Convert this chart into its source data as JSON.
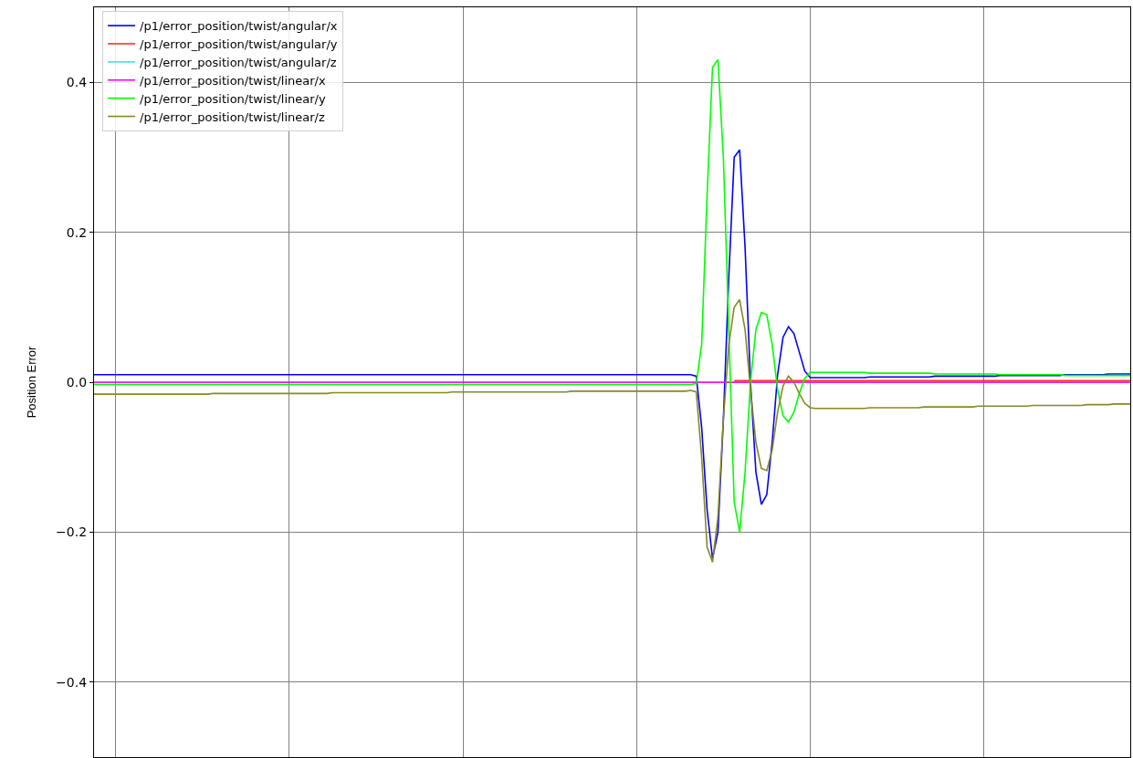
{
  "chart_data": {
    "type": "line",
    "ylabel": "Position Error",
    "categories": [
      null,
      null,
      null,
      null,
      null,
      null,
      null,
      null,
      null,
      null,
      null,
      null,
      null,
      null,
      null,
      null,
      null,
      null,
      null,
      null,
      null,
      null,
      null,
      null,
      null,
      null,
      null,
      null,
      null,
      null,
      null,
      null,
      null,
      null,
      null,
      null,
      null,
      null,
      null,
      null,
      null,
      null,
      null,
      null,
      null,
      null,
      null,
      null,
      null,
      null,
      null,
      null,
      null,
      null,
      null,
      null,
      null,
      null,
      null,
      null,
      null,
      null,
      null,
      null,
      null,
      null,
      null,
      null,
      null,
      null,
      null,
      null,
      null,
      null,
      null,
      null,
      null,
      null,
      null,
      null,
      null,
      null,
      null,
      null,
      null,
      null,
      null,
      null,
      null,
      null,
      null,
      null,
      null,
      null,
      null,
      null,
      null,
      null,
      null,
      null,
      null,
      null,
      null,
      null,
      null,
      null,
      null,
      null,
      null,
      null,
      null,
      null,
      null,
      null,
      null,
      null,
      null,
      null,
      null,
      null,
      null,
      null,
      null,
      null,
      null,
      null,
      null,
      null,
      null,
      null,
      null,
      null,
      null,
      null,
      null,
      null,
      null,
      null,
      null,
      null,
      null,
      null,
      null,
      null,
      null,
      null,
      null,
      null,
      null,
      null,
      null,
      null,
      null,
      null,
      null,
      null,
      null,
      null,
      null,
      null,
      null,
      null,
      null,
      null,
      null,
      null,
      null,
      null,
      null,
      null,
      null,
      null,
      null,
      null,
      null,
      null,
      null,
      null,
      null,
      null,
      null,
      null,
      null,
      null,
      null,
      null,
      null,
      null,
      null,
      null,
      null,
      null
    ],
    "series": [
      {
        "name": "/p1/error_position/twist/angular/x",
        "color": "#0000ff",
        "values": [
          0.01,
          0.01,
          0.01,
          0.01,
          0.01,
          0.01,
          0.01,
          0.01,
          0.01,
          0.01,
          0.01,
          0.01,
          0.01,
          0.01,
          0.01,
          0.01,
          0.01,
          0.01,
          0.01,
          0.01,
          0.01,
          0.01,
          0.01,
          0.01,
          0.01,
          0.01,
          0.01,
          0.01,
          0.01,
          0.01,
          0.01,
          0.01,
          0.01,
          0.01,
          0.01,
          0.01,
          0.01,
          0.01,
          0.01,
          0.01,
          0.01,
          0.01,
          0.01,
          0.01,
          0.01,
          0.01,
          0.01,
          0.01,
          0.01,
          0.01,
          0.01,
          0.01,
          0.01,
          0.01,
          0.01,
          0.01,
          0.01,
          0.01,
          0.01,
          0.01,
          0.01,
          0.01,
          0.01,
          0.01,
          0.01,
          0.01,
          0.01,
          0.01,
          0.01,
          0.01,
          0.01,
          0.01,
          0.01,
          0.01,
          0.01,
          0.01,
          0.01,
          0.01,
          0.01,
          0.01,
          0.01,
          0.01,
          0.01,
          0.01,
          0.01,
          0.01,
          0.01,
          0.01,
          0.01,
          0.01,
          0.01,
          0.01,
          0.01,
          0.01,
          0.01,
          0.01,
          0.01,
          0.01,
          0.01,
          0.01,
          0.01,
          0.01,
          0.01,
          0.01,
          0.01,
          0.01,
          0.01,
          0.01,
          0.01,
          0.01,
          0.01,
          0.008,
          -0.06,
          -0.17,
          -0.235,
          -0.2,
          -0.05,
          0.14,
          0.3,
          0.31,
          0.18,
          0.0,
          -0.12,
          -0.163,
          -0.15,
          -0.08,
          0.01,
          0.06,
          0.074,
          0.065,
          0.04,
          0.015,
          0.006,
          0.006,
          0.006,
          0.006,
          0.006,
          0.006,
          0.006,
          0.006,
          0.006,
          0.006,
          0.006,
          0.007,
          0.007,
          0.007,
          0.007,
          0.007,
          0.007,
          0.007,
          0.007,
          0.007,
          0.007,
          0.007,
          0.007,
          0.008,
          0.008,
          0.008,
          0.008,
          0.008,
          0.008,
          0.008,
          0.008,
          0.008,
          0.008,
          0.008,
          0.008,
          0.009,
          0.009,
          0.009,
          0.009,
          0.009,
          0.009,
          0.009,
          0.009,
          0.009,
          0.009,
          0.009,
          0.009,
          0.01,
          0.01,
          0.01,
          0.01,
          0.01,
          0.01,
          0.01,
          0.01,
          0.011,
          0.011,
          0.011,
          0.011,
          0.011
        ]
      },
      {
        "name": "/p1/error_position/twist/angular/y",
        "color": "#ff3030",
        "values": [
          null,
          null,
          null,
          null,
          null,
          null,
          null,
          null,
          null,
          null,
          null,
          null,
          null,
          null,
          null,
          null,
          null,
          null,
          null,
          null,
          null,
          null,
          null,
          null,
          null,
          null,
          null,
          null,
          null,
          null,
          null,
          null,
          null,
          null,
          null,
          null,
          null,
          null,
          null,
          null,
          null,
          null,
          null,
          null,
          null,
          null,
          null,
          null,
          null,
          null,
          null,
          null,
          null,
          null,
          null,
          null,
          null,
          null,
          null,
          null,
          null,
          null,
          null,
          null,
          null,
          null,
          null,
          null,
          null,
          null,
          null,
          null,
          null,
          null,
          null,
          null,
          null,
          null,
          null,
          null,
          null,
          null,
          null,
          null,
          null,
          null,
          null,
          null,
          null,
          null,
          null,
          null,
          null,
          null,
          null,
          null,
          null,
          null,
          null,
          null,
          null,
          null,
          null,
          null,
          null,
          null,
          null,
          null,
          null,
          null,
          null,
          null,
          null,
          null,
          null,
          null,
          null,
          null,
          0.002,
          0.002,
          0.002,
          0.002,
          0.002,
          0.002,
          0.002,
          0.002,
          0.002,
          0.002,
          0.002,
          0.002,
          0.002,
          0.002,
          0.002,
          0.002,
          0.002,
          0.002,
          0.002,
          0.002,
          0.002,
          0.002,
          0.002,
          0.002,
          0.002,
          0.002,
          0.002,
          0.002,
          0.002,
          0.002,
          0.002,
          0.002,
          0.002,
          0.002,
          0.002,
          0.002,
          0.002,
          0.002,
          0.002,
          0.002,
          0.002,
          0.002,
          0.002,
          0.002,
          0.002,
          0.002,
          0.002,
          0.002,
          0.002,
          0.002,
          0.002,
          0.002,
          0.002,
          0.002,
          0.002,
          0.002,
          0.002,
          0.002,
          0.002,
          0.002,
          0.002,
          0.002,
          0.002,
          0.002,
          0.002,
          0.002,
          0.002,
          0.002,
          0.002,
          0.002,
          0.002,
          0.002,
          0.002,
          0.002
        ]
      },
      {
        "name": "/p1/error_position/twist/angular/z",
        "color": "#40e0e0",
        "values": [
          null,
          null,
          null,
          null,
          null,
          null,
          null,
          null,
          null,
          null,
          null,
          null,
          null,
          null,
          null,
          null,
          null,
          null,
          null,
          null,
          null,
          null,
          null,
          null,
          null,
          null,
          null,
          null,
          null,
          null,
          null,
          null,
          null,
          null,
          null,
          null,
          null,
          null,
          null,
          null,
          null,
          null,
          null,
          null,
          null,
          null,
          null,
          null,
          null,
          null,
          null,
          null,
          null,
          null,
          null,
          null,
          null,
          null,
          null,
          null,
          null,
          null,
          null,
          null,
          null,
          null,
          null,
          null,
          null,
          null,
          null,
          null,
          null,
          null,
          null,
          null,
          null,
          null,
          null,
          null,
          null,
          null,
          null,
          null,
          null,
          null,
          null,
          null,
          null,
          null,
          null,
          null,
          null,
          null,
          null,
          null,
          null,
          null,
          null,
          null,
          null,
          null,
          null,
          null,
          null,
          null,
          null,
          null,
          null,
          null,
          null,
          null,
          null,
          null,
          null,
          null,
          null,
          null,
          null,
          null,
          null,
          null,
          null,
          null,
          null,
          null,
          null,
          null,
          null,
          null,
          null,
          null,
          null,
          null,
          null,
          null,
          null,
          null,
          null,
          null,
          null,
          null,
          null,
          null,
          null,
          null,
          null,
          null,
          null,
          null,
          null,
          null,
          null,
          null,
          null,
          null,
          null,
          null,
          null,
          null,
          null,
          null,
          null,
          null,
          null,
          null,
          null,
          null,
          null,
          null,
          null,
          null,
          null,
          null,
          null,
          null,
          null,
          null,
          null,
          null,
          null,
          null,
          null,
          null,
          null,
          null,
          null,
          null,
          null,
          null,
          null,
          null
        ]
      },
      {
        "name": "/p1/error_position/twist/linear/x",
        "color": "#ff00ff",
        "values": [
          0,
          0,
          0,
          0,
          0,
          0,
          0,
          0,
          0,
          0,
          0,
          0,
          0,
          0,
          0,
          0,
          0,
          0,
          0,
          0,
          0,
          0,
          0,
          0,
          0,
          0,
          0,
          0,
          0,
          0,
          0,
          0,
          0,
          0,
          0,
          0,
          0,
          0,
          0,
          0,
          0,
          0,
          0,
          0,
          0,
          0,
          0,
          0,
          0,
          0,
          0,
          0,
          0,
          0,
          0,
          0,
          0,
          0,
          0,
          0,
          0,
          0,
          0,
          0,
          0,
          0,
          0,
          0,
          0,
          0,
          0,
          0,
          0,
          0,
          0,
          0,
          0,
          0,
          0,
          0,
          0,
          0,
          0,
          0,
          0,
          0,
          0,
          0,
          0,
          0,
          0,
          0,
          0,
          0,
          0,
          0,
          0,
          0,
          0,
          0,
          0,
          0,
          0,
          0,
          0,
          0,
          0,
          0,
          0,
          0,
          0,
          0,
          0,
          0,
          0,
          0,
          0,
          0,
          0,
          0,
          0,
          0,
          0,
          0,
          0,
          0,
          0,
          0,
          0,
          0,
          0,
          0,
          0,
          0,
          0,
          0,
          0,
          0,
          0,
          0,
          0,
          0,
          0,
          0,
          0,
          0,
          0,
          0,
          0,
          0,
          0,
          0,
          0,
          0,
          0,
          0,
          0,
          0,
          0,
          0,
          0,
          0,
          0,
          0,
          0,
          0,
          0,
          0,
          0,
          0,
          0,
          0,
          0,
          0,
          0,
          0,
          0,
          0,
          0,
          0,
          0,
          0,
          0,
          0,
          0,
          0,
          0,
          0,
          0,
          0,
          0,
          0
        ]
      },
      {
        "name": "/p1/error_position/twist/linear/y",
        "color": "#00ff00",
        "values": [
          -0.003,
          -0.003,
          -0.003,
          -0.003,
          -0.003,
          -0.003,
          -0.003,
          -0.003,
          -0.003,
          -0.003,
          -0.003,
          -0.003,
          -0.003,
          -0.003,
          -0.003,
          -0.003,
          -0.003,
          -0.003,
          -0.003,
          -0.003,
          -0.003,
          -0.003,
          -0.003,
          -0.003,
          -0.003,
          -0.003,
          -0.003,
          -0.003,
          -0.003,
          -0.003,
          -0.003,
          -0.003,
          -0.003,
          -0.003,
          -0.003,
          -0.003,
          -0.003,
          -0.003,
          -0.003,
          -0.003,
          -0.003,
          -0.003,
          -0.003,
          -0.003,
          -0.003,
          -0.003,
          -0.003,
          -0.003,
          -0.003,
          -0.003,
          -0.003,
          -0.003,
          -0.003,
          -0.003,
          -0.003,
          -0.003,
          -0.003,
          -0.003,
          -0.003,
          -0.003,
          -0.003,
          -0.003,
          -0.003,
          -0.003,
          -0.003,
          -0.003,
          -0.003,
          -0.003,
          -0.003,
          -0.003,
          -0.003,
          -0.003,
          -0.003,
          -0.003,
          -0.003,
          -0.003,
          -0.003,
          -0.003,
          -0.003,
          -0.003,
          -0.003,
          -0.003,
          -0.003,
          -0.003,
          -0.003,
          -0.003,
          -0.003,
          -0.003,
          -0.003,
          -0.003,
          -0.003,
          -0.003,
          -0.003,
          -0.003,
          -0.003,
          -0.003,
          -0.003,
          -0.003,
          -0.003,
          -0.003,
          -0.003,
          -0.003,
          -0.003,
          -0.003,
          -0.003,
          -0.003,
          -0.003,
          -0.003,
          -0.003,
          -0.003,
          -0.003,
          -0.002,
          0.05,
          0.25,
          0.42,
          0.43,
          0.3,
          0.07,
          -0.16,
          -0.2,
          -0.12,
          0.0,
          0.07,
          0.093,
          0.09,
          0.05,
          -0.01,
          -0.045,
          -0.053,
          -0.04,
          -0.015,
          0.005,
          0.013,
          0.013,
          0.013,
          0.013,
          0.013,
          0.013,
          0.013,
          0.013,
          0.013,
          0.013,
          0.013,
          0.012,
          0.012,
          0.012,
          0.012,
          0.012,
          0.012,
          0.012,
          0.012,
          0.012,
          0.012,
          0.012,
          0.012,
          0.011,
          0.011,
          0.011,
          0.011,
          0.011,
          0.011,
          0.011,
          0.011,
          0.011,
          0.011,
          0.011,
          0.011,
          0.01,
          0.01,
          0.01,
          0.01,
          0.01,
          0.01,
          0.01,
          0.01,
          0.01,
          0.01,
          0.01,
          0.01,
          0.009,
          0.009,
          0.009,
          0.009,
          0.009,
          0.009,
          0.009,
          0.009,
          0.009,
          0.009,
          0.009,
          0.009,
          0.009
        ]
      },
      {
        "name": "/p1/error_position/twist/linear/z",
        "color": "#888822",
        "values": [
          -0.016,
          -0.016,
          -0.016,
          -0.016,
          -0.016,
          -0.016,
          -0.016,
          -0.016,
          -0.016,
          -0.016,
          -0.016,
          -0.016,
          -0.016,
          -0.016,
          -0.016,
          -0.016,
          -0.016,
          -0.016,
          -0.016,
          -0.016,
          -0.016,
          -0.016,
          -0.015,
          -0.015,
          -0.015,
          -0.015,
          -0.015,
          -0.015,
          -0.015,
          -0.015,
          -0.015,
          -0.015,
          -0.015,
          -0.015,
          -0.015,
          -0.015,
          -0.015,
          -0.015,
          -0.015,
          -0.015,
          -0.015,
          -0.015,
          -0.015,
          -0.015,
          -0.014,
          -0.014,
          -0.014,
          -0.014,
          -0.014,
          -0.014,
          -0.014,
          -0.014,
          -0.014,
          -0.014,
          -0.014,
          -0.014,
          -0.014,
          -0.014,
          -0.014,
          -0.014,
          -0.014,
          -0.014,
          -0.014,
          -0.014,
          -0.014,
          -0.014,
          -0.013,
          -0.013,
          -0.013,
          -0.013,
          -0.013,
          -0.013,
          -0.013,
          -0.013,
          -0.013,
          -0.013,
          -0.013,
          -0.013,
          -0.013,
          -0.013,
          -0.013,
          -0.013,
          -0.013,
          -0.013,
          -0.013,
          -0.013,
          -0.013,
          -0.013,
          -0.012,
          -0.012,
          -0.012,
          -0.012,
          -0.012,
          -0.012,
          -0.012,
          -0.012,
          -0.012,
          -0.012,
          -0.012,
          -0.012,
          -0.012,
          -0.012,
          -0.012,
          -0.012,
          -0.012,
          -0.012,
          -0.012,
          -0.012,
          -0.012,
          -0.012,
          -0.011,
          -0.013,
          -0.1,
          -0.22,
          -0.24,
          -0.18,
          -0.05,
          0.05,
          0.1,
          0.11,
          0.07,
          -0.01,
          -0.08,
          -0.115,
          -0.118,
          -0.09,
          -0.04,
          -0.005,
          0.008,
          0.0,
          -0.015,
          -0.028,
          -0.034,
          -0.035,
          -0.035,
          -0.035,
          -0.035,
          -0.035,
          -0.035,
          -0.035,
          -0.035,
          -0.035,
          -0.035,
          -0.034,
          -0.034,
          -0.034,
          -0.034,
          -0.034,
          -0.034,
          -0.034,
          -0.034,
          -0.034,
          -0.034,
          -0.033,
          -0.033,
          -0.033,
          -0.033,
          -0.033,
          -0.033,
          -0.033,
          -0.033,
          -0.033,
          -0.033,
          -0.032,
          -0.032,
          -0.032,
          -0.032,
          -0.032,
          -0.032,
          -0.032,
          -0.032,
          -0.032,
          -0.032,
          -0.031,
          -0.031,
          -0.031,
          -0.031,
          -0.031,
          -0.031,
          -0.031,
          -0.031,
          -0.031,
          -0.031,
          -0.03,
          -0.03,
          -0.03,
          -0.03,
          -0.03,
          -0.029,
          -0.029,
          -0.029,
          -0.029
        ]
      }
    ],
    "ylim": [
      -0.5,
      0.5
    ],
    "yticks": [
      {
        "value": -0.4,
        "label": "−0.4"
      },
      {
        "value": -0.2,
        "label": "−0.2"
      },
      {
        "value": 0,
        "label": "0.0"
      },
      0.2,
      0.4
    ],
    "grid": true,
    "legend": "top left",
    "tick_labels": "y",
    "line_style": "solid",
    "marker": "none"
  }
}
